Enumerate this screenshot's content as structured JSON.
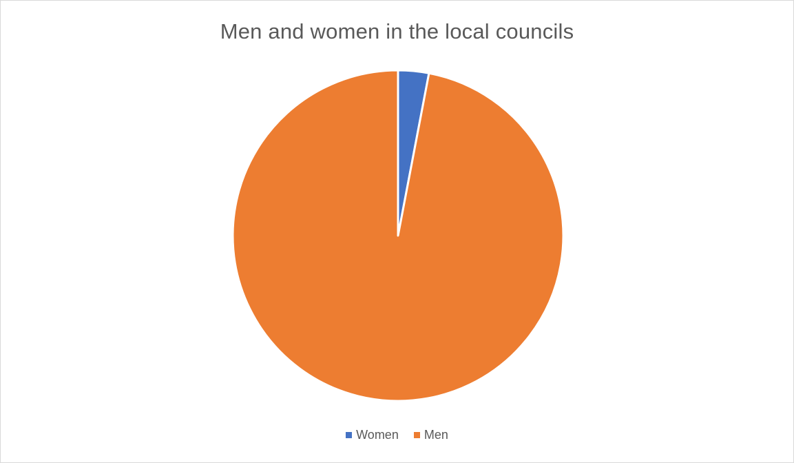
{
  "chart_data": {
    "type": "pie",
    "title": "Men and women in the local councils",
    "categories": [
      "Women",
      "Men"
    ],
    "values": [
      3,
      97
    ],
    "colors": [
      "#4472c4",
      "#ed7d31"
    ],
    "start_angle_deg": 0,
    "direction": "clockwise",
    "legend_position": "bottom"
  }
}
